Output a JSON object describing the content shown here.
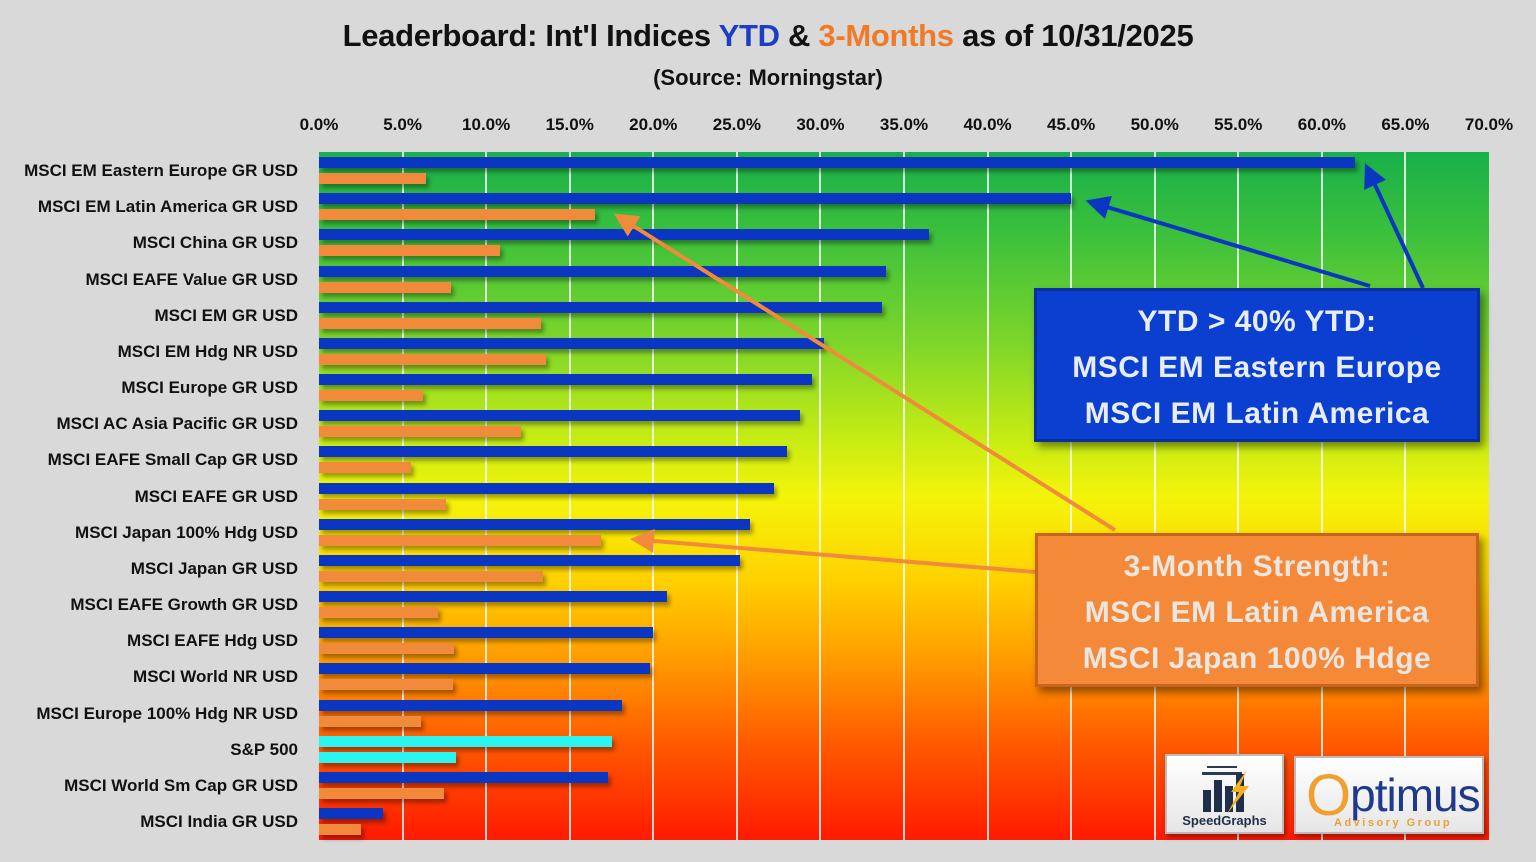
{
  "title": {
    "prefix": "Leaderboard:  Int'l Indices ",
    "ytd": "YTD",
    "amp": " & ",
    "m3": "3-Months",
    "suffix": " as of 10/31/2025",
    "subtitle": "(Source:  Morningstar)"
  },
  "colors": {
    "ytd_bar": "#0a36c2",
    "m3_bar": "#f28a3c",
    "highlight_bar": "#2cf5f0",
    "title_ytd": "#1a3fc4",
    "title_m3": "#f07a26",
    "background": "#d9d9d9"
  },
  "axis": {
    "ticks": [
      "0.0%",
      "5.0%",
      "10.0%",
      "15.0%",
      "20.0%",
      "25.0%",
      "30.0%",
      "35.0%",
      "40.0%",
      "45.0%",
      "50.0%",
      "55.0%",
      "60.0%",
      "65.0%",
      "70.0%"
    ]
  },
  "callouts": {
    "ytd": {
      "line1": "YTD > 40% YTD:",
      "line2": "MSCI EM Eastern Europe",
      "line3": "MSCI EM Latin America"
    },
    "m3": {
      "line1": "3-Month Strength:",
      "line2": "MSCI EM Latin America",
      "line3": "MSCI Japan 100% Hdge"
    }
  },
  "logos": {
    "speedgraphs": "SpeedGraphs",
    "optimus_main": "ptimus",
    "optimus_o": "O",
    "optimus_sub": "Advisory Group"
  },
  "chart_data": {
    "type": "bar",
    "orientation": "horizontal",
    "title": "Leaderboard:  Int'l Indices YTD & 3-Months as of 10/31/2025",
    "subtitle": "(Source:  Morningstar)",
    "xlabel": "",
    "ylabel": "",
    "xlim": [
      0,
      70
    ],
    "x_tick_format": "percent",
    "grid": true,
    "legend": "none (series identified by colored title words)",
    "categories": [
      "MSCI EM Eastern Europe GR USD",
      "MSCI EM Latin America GR USD",
      "MSCI China GR USD",
      "MSCI EAFE Value GR USD",
      "MSCI EM GR USD",
      "MSCI EM Hdg NR USD",
      "MSCI Europe GR USD",
      "MSCI AC Asia Pacific GR USD",
      "MSCI EAFE Small Cap GR USD",
      "MSCI EAFE GR USD",
      "MSCI Japan 100% Hdg USD",
      "MSCI Japan GR USD",
      "MSCI EAFE Growth GR USD",
      "MSCI EAFE Hdg USD",
      "MSCI World NR USD",
      "MSCI Europe 100% Hdg NR USD",
      "S&P 500",
      "MSCI World Sm Cap GR USD",
      "MSCI India GR USD"
    ],
    "series": [
      {
        "name": "YTD",
        "color": "#0a36c2",
        "values": [
          62.0,
          45.0,
          36.5,
          33.9,
          33.7,
          30.2,
          29.5,
          28.8,
          28.0,
          27.2,
          25.8,
          25.2,
          20.8,
          20.0,
          19.8,
          18.1,
          17.5,
          17.3,
          3.8
        ]
      },
      {
        "name": "3-Months",
        "color": "#f28a3c",
        "values": [
          6.4,
          16.5,
          10.8,
          7.9,
          13.3,
          13.6,
          6.2,
          12.1,
          5.5,
          7.6,
          16.9,
          13.4,
          7.1,
          8.1,
          8.0,
          6.1,
          8.2,
          7.5,
          2.5
        ]
      }
    ],
    "highlight": {
      "category": "S&P 500",
      "color": "#2cf5f0"
    },
    "annotations": [
      "YTD > 40% YTD: MSCI EM Eastern Europe, MSCI EM Latin America",
      "3-Month Strength: MSCI EM Latin America, MSCI Japan 100% Hdge"
    ]
  }
}
